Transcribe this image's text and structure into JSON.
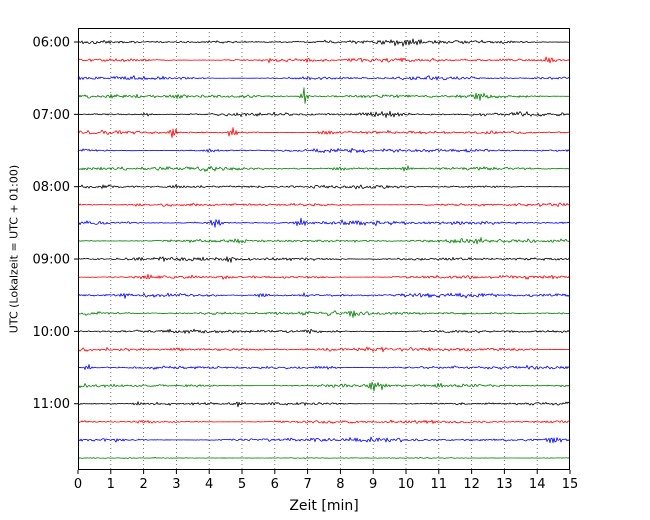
{
  "chart_data": {
    "type": "line",
    "subtype": "helicorder-drum-seismogram",
    "title": "",
    "xlabel": "Zeit  [min]",
    "ylabel": "UTC (Lokalzeit = UTC + 01:00)",
    "xlim": [
      0,
      15
    ],
    "x_tick_labels": [
      "0",
      "1",
      "2",
      "3",
      "4",
      "5",
      "6",
      "7",
      "8",
      "9",
      "10",
      "11",
      "12",
      "13",
      "14",
      "15"
    ],
    "grid": {
      "axis": "x",
      "style": "dotted",
      "color": "#555555"
    },
    "minutes_per_line": 15,
    "color_cycle": [
      "#000000",
      "#ff0000",
      "#0000ff",
      "#008000"
    ],
    "hour_tick_labels": [
      "06:00",
      "07:00",
      "08:00",
      "09:00",
      "10:00",
      "11:00"
    ],
    "traces": [
      {
        "label": "06:00",
        "color": "#000000",
        "noise": 0.95,
        "spikes": [
          {
            "x": 10.0,
            "a": 2.4,
            "w": 0.5
          },
          {
            "x": 13.2,
            "a": 1.2,
            "w": 0.1
          }
        ]
      },
      {
        "label": "",
        "color": "#ff0000",
        "noise": 1.0,
        "spikes": [
          {
            "x": 7.0,
            "a": 2.2,
            "w": 0.08
          },
          {
            "x": 5.8,
            "a": 1.5,
            "w": 0.08
          },
          {
            "x": 14.4,
            "a": 3.0,
            "w": 0.12
          }
        ]
      },
      {
        "label": "",
        "color": "#0000ff",
        "noise": 1.05,
        "spikes": [
          {
            "x": 1.5,
            "a": 1.5,
            "w": 0.2
          },
          {
            "x": 7.0,
            "a": 1.4,
            "w": 0.3
          }
        ]
      },
      {
        "label": "",
        "color": "#008000",
        "noise": 1.0,
        "spikes": [
          {
            "x": 3.0,
            "a": 2.0,
            "w": 0.2
          },
          {
            "x": 6.9,
            "a": 8.0,
            "w": 0.07
          },
          {
            "x": 12.2,
            "a": 3.5,
            "w": 0.15
          }
        ]
      },
      {
        "label": "07:00",
        "color": "#000000",
        "noise": 0.95,
        "spikes": [
          {
            "x": 2.1,
            "a": 1.5,
            "w": 0.1
          },
          {
            "x": 9.3,
            "a": 2.2,
            "w": 0.4
          }
        ]
      },
      {
        "label": "",
        "color": "#ff0000",
        "noise": 1.0,
        "spikes": [
          {
            "x": 2.9,
            "a": 5.0,
            "w": 0.08
          },
          {
            "x": 4.7,
            "a": 4.5,
            "w": 0.1
          },
          {
            "x": 7.6,
            "a": 2.0,
            "w": 0.2
          }
        ]
      },
      {
        "label": "",
        "color": "#0000ff",
        "noise": 1.0,
        "spikes": [
          {
            "x": 4.0,
            "a": 1.2,
            "w": 0.3
          }
        ]
      },
      {
        "label": "",
        "color": "#008000",
        "noise": 1.0,
        "spikes": [
          {
            "x": 8.0,
            "a": 1.5,
            "w": 0.2
          },
          {
            "x": 10.0,
            "a": 2.5,
            "w": 0.12
          }
        ]
      },
      {
        "label": "08:00",
        "color": "#000000",
        "noise": 0.9,
        "spikes": [
          {
            "x": 3.0,
            "a": 1.2,
            "w": 0.2
          }
        ]
      },
      {
        "label": "",
        "color": "#ff0000",
        "noise": 0.95,
        "spikes": [
          {
            "x": 1.8,
            "a": 1.3,
            "w": 0.15
          }
        ]
      },
      {
        "label": "",
        "color": "#0000ff",
        "noise": 1.05,
        "spikes": [
          {
            "x": 4.2,
            "a": 4.0,
            "w": 0.12
          },
          {
            "x": 6.8,
            "a": 3.5,
            "w": 0.12
          },
          {
            "x": 8.4,
            "a": 2.0,
            "w": 0.25
          }
        ]
      },
      {
        "label": "",
        "color": "#008000",
        "noise": 1.0,
        "spikes": [
          {
            "x": 5.0,
            "a": 1.5,
            "w": 0.3
          },
          {
            "x": 12.2,
            "a": 2.5,
            "w": 0.15
          }
        ]
      },
      {
        "label": "09:00",
        "color": "#000000",
        "noise": 0.9,
        "spikes": [
          {
            "x": 1.9,
            "a": 1.5,
            "w": 0.1
          },
          {
            "x": 4.6,
            "a": 4.5,
            "w": 0.06
          }
        ]
      },
      {
        "label": "",
        "color": "#ff0000",
        "noise": 1.0,
        "spikes": [
          {
            "x": 2.1,
            "a": 2.0,
            "w": 0.15
          },
          {
            "x": 4.5,
            "a": 1.8,
            "w": 0.15
          }
        ]
      },
      {
        "label": "",
        "color": "#0000ff",
        "noise": 1.05,
        "spikes": [
          {
            "x": 1.4,
            "a": 2.0,
            "w": 0.1
          },
          {
            "x": 5.6,
            "a": 2.0,
            "w": 0.15
          },
          {
            "x": 6.9,
            "a": 1.8,
            "w": 0.1
          }
        ]
      },
      {
        "label": "",
        "color": "#008000",
        "noise": 1.0,
        "spikes": [
          {
            "x": 8.4,
            "a": 3.5,
            "w": 0.08
          }
        ]
      },
      {
        "label": "10:00",
        "color": "#000000",
        "noise": 0.95,
        "spikes": [
          {
            "x": 7.0,
            "a": 1.2,
            "w": 0.3
          }
        ]
      },
      {
        "label": "",
        "color": "#ff0000",
        "noise": 0.95,
        "spikes": [
          {
            "x": 3.0,
            "a": 1.2,
            "w": 0.2
          }
        ]
      },
      {
        "label": "",
        "color": "#0000ff",
        "noise": 1.0,
        "spikes": [
          {
            "x": 0.3,
            "a": 2.5,
            "w": 0.1
          },
          {
            "x": 7.5,
            "a": 1.3,
            "w": 0.3
          }
        ]
      },
      {
        "label": "",
        "color": "#008000",
        "noise": 1.0,
        "spikes": [
          {
            "x": 9.0,
            "a": 4.5,
            "w": 0.1
          },
          {
            "x": 9.3,
            "a": 3.0,
            "w": 0.08
          },
          {
            "x": 11.0,
            "a": 1.5,
            "w": 0.15
          }
        ]
      },
      {
        "label": "11:00",
        "color": "#000000",
        "noise": 0.9,
        "spikes": [
          {
            "x": 1.8,
            "a": 1.5,
            "w": 0.1
          },
          {
            "x": 4.9,
            "a": 2.5,
            "w": 0.07
          }
        ]
      },
      {
        "label": "",
        "color": "#ff0000",
        "noise": 0.95,
        "spikes": [
          {
            "x": 2.0,
            "a": 1.3,
            "w": 0.2
          }
        ]
      },
      {
        "label": "",
        "color": "#0000ff",
        "noise": 1.0,
        "spikes": [
          {
            "x": 1.2,
            "a": 1.5,
            "w": 0.1
          },
          {
            "x": 9.0,
            "a": 1.3,
            "w": 0.3
          },
          {
            "x": 14.5,
            "a": 3.0,
            "w": 0.15
          }
        ]
      },
      {
        "label": "",
        "color": "#008000",
        "noise": 0.35,
        "spikes": []
      }
    ]
  }
}
